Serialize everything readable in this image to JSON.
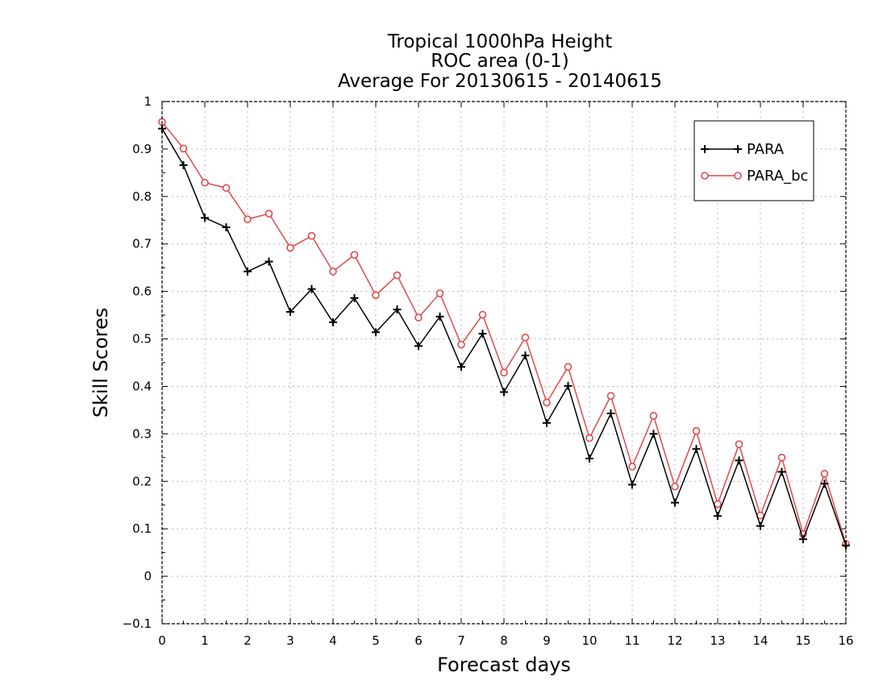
{
  "chart_data": {
    "type": "line",
    "title": [
      "Tropical 1000hPa Height",
      "ROC area (0-1)",
      "Average For 20130615 - 20140615"
    ],
    "xlabel": "Forecast days",
    "ylabel": "Skill Scores",
    "xlim": [
      0,
      16
    ],
    "ylim": [
      -0.1,
      1
    ],
    "x_ticks": [
      "0",
      "1",
      "2",
      "3",
      "4",
      "5",
      "6",
      "7",
      "8",
      "9",
      "10",
      "11",
      "12",
      "13",
      "14",
      "15",
      "16"
    ],
    "y_ticks": [
      "−0.1",
      "0",
      "0.1",
      "0.2",
      "0.3",
      "0.4",
      "0.5",
      "0.6",
      "0.7",
      "0.8",
      "0.9",
      "1"
    ],
    "grid": true,
    "legend_position": "top-right",
    "x": [
      0,
      0.5,
      1,
      1.5,
      2,
      2.5,
      3,
      3.5,
      4,
      4.5,
      5,
      5.5,
      6,
      6.5,
      7,
      7.5,
      8,
      8.5,
      9,
      9.5,
      10,
      10.5,
      11,
      11.5,
      12,
      12.5,
      13,
      13.5,
      14,
      14.5,
      15,
      15.5,
      16
    ],
    "series": [
      {
        "name": "PARA",
        "color": "#000000",
        "marker": "plus",
        "values": [
          0.943,
          0.866,
          0.755,
          0.735,
          0.642,
          0.663,
          0.557,
          0.605,
          0.535,
          0.586,
          0.514,
          0.562,
          0.485,
          0.547,
          0.441,
          0.511,
          0.388,
          0.465,
          0.323,
          0.401,
          0.248,
          0.343,
          0.193,
          0.3,
          0.155,
          0.268,
          0.127,
          0.244,
          0.106,
          0.22,
          0.078,
          0.195,
          0.065
        ]
      },
      {
        "name": "PARA_bc",
        "color": "#e04a4a",
        "marker": "circle",
        "values": [
          0.957,
          0.901,
          0.829,
          0.818,
          0.752,
          0.764,
          0.692,
          0.717,
          0.642,
          0.677,
          0.592,
          0.634,
          0.545,
          0.596,
          0.488,
          0.551,
          0.429,
          0.503,
          0.366,
          0.441,
          0.291,
          0.38,
          0.231,
          0.338,
          0.189,
          0.306,
          0.152,
          0.278,
          0.128,
          0.25,
          0.089,
          0.216,
          0.068
        ]
      }
    ]
  }
}
